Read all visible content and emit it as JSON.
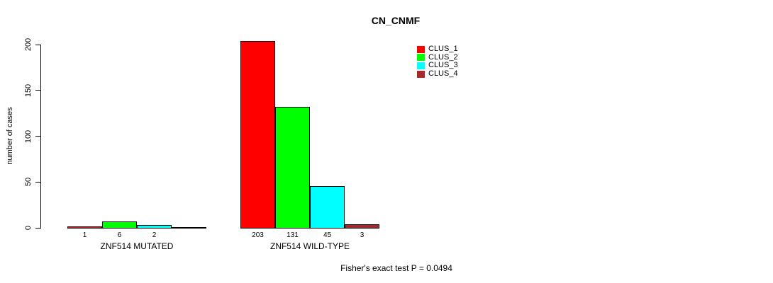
{
  "title": "CN_CNMF",
  "footer": "Fisher's exact test P = 0.0494",
  "ylabel": "number of cases",
  "legend": [
    {
      "label": "CLUS_1",
      "color": "#FF0000"
    },
    {
      "label": "CLUS_2",
      "color": "#00FF00"
    },
    {
      "label": "CLUS_3",
      "color": "#00FFFF"
    },
    {
      "label": "CLUS_4",
      "color": "#A52A2A"
    }
  ],
  "chart_data": {
    "type": "bar",
    "title": "CN_CNMF",
    "xlabel": "",
    "ylabel": "number of cases",
    "ylim": [
      0,
      200
    ],
    "yticks": [
      0,
      50,
      100,
      150,
      200
    ],
    "grid": false,
    "legend_position": "top-right",
    "categories": [
      "ZNF514 MUTATED",
      "ZNF514 WILD-TYPE"
    ],
    "series": [
      {
        "name": "CLUS_1",
        "color": "#FF0000",
        "values": [
          1,
          203
        ]
      },
      {
        "name": "CLUS_2",
        "color": "#00FF00",
        "values": [
          6,
          131
        ]
      },
      {
        "name": "CLUS_3",
        "color": "#00FFFF",
        "values": [
          2,
          45
        ]
      },
      {
        "name": "CLUS_4",
        "color": "#A52A2A",
        "values": [
          0,
          3
        ]
      }
    ],
    "bar_value_labels": [
      [
        "1",
        "6",
        "2",
        ""
      ],
      [
        "203",
        "131",
        "45",
        "3"
      ]
    ],
    "annotation": "Fisher's exact test P = 0.0494"
  }
}
